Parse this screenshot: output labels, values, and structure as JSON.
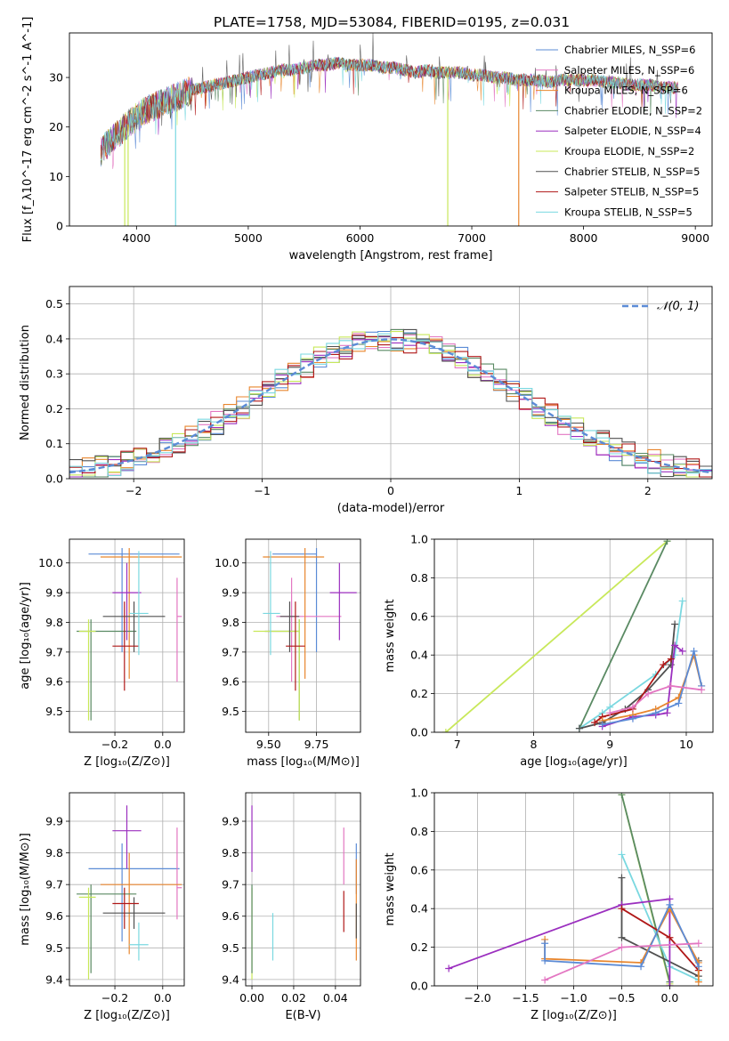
{
  "figure_title": "PLATE=1758, MJD=53084, FIBERID=0195, z=0.031",
  "series_colors": [
    "#5b8bd6",
    "#e377c2",
    "#e8862e",
    "#5a8a63",
    "#9b2fbf",
    "#c8e85a",
    "#505050",
    "#b01818",
    "#7ad8e0"
  ],
  "chart_data": [
    {
      "id": "spectrum",
      "type": "line",
      "xlabel": "wavelength [Angstrom, rest frame]",
      "ylabel": "Flux [f_λ10^-17 erg cm^-2 s^-1 A^-1]",
      "xlim": [
        3400,
        9150
      ],
      "ylim": [
        0,
        39
      ],
      "xticks": [
        4000,
        5000,
        6000,
        7000,
        8000,
        9000
      ],
      "yticks": [
        0,
        10,
        20,
        30
      ],
      "grid": false,
      "legend_position": "top-right",
      "legend": [
        "Chabrier MILES, N_SSP=6",
        "Salpeter MILES, N_SSP=6",
        "Kroupa MILES, N_SSP=6",
        "Chabrier ELODIE, N_SSP=2",
        "Salpeter ELODIE, N_SSP=4",
        "Kroupa ELODIE, N_SSP=2",
        "Chabrier STELIB, N_SSP=5",
        "Salpeter STELIB, N_SSP=5",
        "Kroupa STELIB, N_SSP=5"
      ],
      "legend_colors": [
        "#5b8bd6",
        "#e377c2",
        "#e8862e",
        "#5a8a63",
        "#9b2fbf",
        "#c8e85a",
        "#505050",
        "#b01818",
        "#7ad8e0"
      ],
      "continuum_x": [
        3680,
        3800,
        3900,
        4000,
        4100,
        4200,
        4300,
        4400,
        4500,
        4600,
        4700,
        4800,
        4900,
        5000,
        5100,
        5200,
        5300,
        5400,
        5500,
        5600,
        5700,
        5800,
        5900,
        6000,
        6100,
        6200,
        6300,
        6400,
        6500,
        6600,
        6700,
        6800,
        6900,
        7000,
        7100,
        7200,
        7300,
        7400,
        7500,
        7600,
        7700,
        7800,
        7900,
        8000,
        8100,
        8200,
        8300,
        8400,
        8500,
        8600,
        8700,
        8800,
        8850
      ],
      "continuum_y": [
        15,
        18,
        20,
        22,
        23.5,
        24.5,
        25.5,
        26.5,
        27.5,
        28,
        28.5,
        29,
        29.5,
        30,
        30.5,
        31,
        31.5,
        31.5,
        32,
        32.5,
        32.5,
        33,
        32.5,
        32.5,
        32.5,
        32,
        32,
        31.5,
        31,
        31.5,
        31,
        31,
        31,
        30.5,
        30.5,
        30,
        30,
        29.5,
        29.5,
        29.5,
        29,
        29.5,
        29.5,
        29.5,
        29.5,
        29,
        29,
        28.5,
        28.5,
        28.5,
        28,
        28,
        28
      ],
      "dropouts": [
        {
          "x": 3895,
          "to": 0,
          "color": "#c8e85a"
        },
        {
          "x": 3925,
          "to": 0,
          "color": "#c8e85a"
        },
        {
          "x": 4350,
          "to": 0,
          "color": "#7ad8e0"
        },
        {
          "x": 6785,
          "to": 0,
          "color": "#c8e85a"
        },
        {
          "x": 7420,
          "to": 0,
          "color": "#e8862e"
        }
      ]
    },
    {
      "id": "residuals",
      "type": "line",
      "xlabel": "(data-model)/error",
      "ylabel": "Normed distribution",
      "xlim": [
        -2.5,
        2.5
      ],
      "ylim": [
        0,
        0.55
      ],
      "xticks": [
        -2,
        -1,
        0,
        1,
        2
      ],
      "yticks": [
        0.0,
        0.1,
        0.2,
        0.3,
        0.4,
        0.5
      ],
      "grid": true,
      "legend_position": "top-right",
      "gaussian_label": "𝒩(0, 1)",
      "gaussian_color": "#5b8bd6",
      "bins": [
        -2.5,
        -2.4,
        -2.3,
        -2.2,
        -2.1,
        -2.0,
        -1.9,
        -1.8,
        -1.7,
        -1.6,
        -1.5,
        -1.4,
        -1.3,
        -1.2,
        -1.1,
        -1.0,
        -0.9,
        -0.8,
        -0.7,
        -0.6,
        -0.5,
        -0.4,
        -0.3,
        -0.2,
        -0.1,
        0.0,
        0.1,
        0.2,
        0.3,
        0.4,
        0.5,
        0.6,
        0.7,
        0.8,
        0.9,
        1.0,
        1.1,
        1.2,
        1.3,
        1.4,
        1.5,
        1.6,
        1.7,
        1.8,
        1.9,
        2.0,
        2.1,
        2.2,
        2.3,
        2.4,
        2.5
      ]
    },
    {
      "id": "age-vs-Z",
      "type": "scatter",
      "xlabel": "Z [log₁₀(Z/Z⊙)]",
      "ylabel": "age  [log₁₀(age/yr)]",
      "xlim": [
        -0.39,
        0.09
      ],
      "ylim": [
        9.43,
        10.08
      ],
      "xticks": [
        -0.2,
        0.0
      ],
      "xtick_labels": [
        "−0.2",
        "0.0"
      ],
      "yticks": [
        9.5,
        9.6,
        9.7,
        9.8,
        9.9,
        10.0
      ],
      "grid": true,
      "points": [
        {
          "x": -0.17,
          "xerr": [
            0.14,
            0.24
          ],
          "y": 10.03,
          "yerr": [
            0.33,
            0.02
          ],
          "color": "#5b8bd6"
        },
        {
          "x": 0.06,
          "xerr": [
            0.0,
            0.02
          ],
          "y": 9.82,
          "yerr": [
            0.22,
            0.13
          ],
          "color": "#e377c2"
        },
        {
          "x": -0.14,
          "xerr": [
            0.12,
            0.22
          ],
          "y": 10.02,
          "yerr": [
            0.41,
            0.03
          ],
          "color": "#e8862e"
        },
        {
          "x": -0.3,
          "xerr": [
            0.06,
            0.19
          ],
          "y": 9.77,
          "yerr": [
            0.3,
            0.04
          ],
          "color": "#5a8a63"
        },
        {
          "x": -0.15,
          "xerr": [
            0.06,
            0.06
          ],
          "y": 9.9,
          "yerr": [
            0.16,
            0.1
          ],
          "color": "#9b2fbf"
        },
        {
          "x": -0.31,
          "xerr": [
            0.04,
            0.03
          ],
          "y": 9.77,
          "yerr": [
            0.3,
            0.04
          ],
          "color": "#c8e85a"
        },
        {
          "x": -0.12,
          "xerr": [
            0.13,
            0.13
          ],
          "y": 9.82,
          "yerr": [
            0.12,
            0.05
          ],
          "color": "#505050"
        },
        {
          "x": -0.16,
          "xerr": [
            0.05,
            0.06
          ],
          "y": 9.72,
          "yerr": [
            0.15,
            0.15
          ],
          "color": "#b01818"
        },
        {
          "x": -0.1,
          "xerr": [
            0.04,
            0.04
          ],
          "y": 9.83,
          "yerr": [
            0.14,
            0.21
          ],
          "color": "#7ad8e0"
        }
      ]
    },
    {
      "id": "age-vs-mass",
      "type": "scatter",
      "xlabel": "mass [log₁₀(M/M⊙)]",
      "ylabel": "",
      "xlim": [
        9.38,
        9.98
      ],
      "ylim": [
        9.43,
        10.08
      ],
      "xticks": [
        9.5,
        9.75
      ],
      "xtick_labels": [
        "9.50",
        "9.75"
      ],
      "yticks": [
        9.5,
        9.6,
        9.7,
        9.8,
        9.9,
        10.0
      ],
      "grid": true,
      "points": [
        {
          "x": 9.75,
          "xerr": [
            0.23,
            0.0
          ],
          "y": 10.03,
          "yerr": [
            0.33,
            0.02
          ],
          "color": "#5b8bd6"
        },
        {
          "x": 9.62,
          "xerr": [
            0.08,
            0.26
          ],
          "y": 9.82,
          "yerr": [
            0.22,
            0.13
          ],
          "color": "#e377c2"
        },
        {
          "x": 9.69,
          "xerr": [
            0.22,
            0.1
          ],
          "y": 10.02,
          "yerr": [
            0.41,
            0.03
          ],
          "color": "#e8862e"
        },
        {
          "x": 9.66,
          "xerr": [
            0.18,
            0.0
          ],
          "y": 9.77,
          "yerr": [
            0.3,
            0.04
          ],
          "color": "#5a8a63"
        },
        {
          "x": 9.87,
          "xerr": [
            0.05,
            0.09
          ],
          "y": 9.9,
          "yerr": [
            0.16,
            0.1
          ],
          "color": "#9b2fbf"
        },
        {
          "x": 9.66,
          "xerr": [
            0.24,
            0.0
          ],
          "y": 9.77,
          "yerr": [
            0.3,
            0.04
          ],
          "color": "#c8e85a"
        },
        {
          "x": 9.61,
          "xerr": [
            0.05,
            0.05
          ],
          "y": 9.82,
          "yerr": [
            0.12,
            0.05
          ],
          "color": "#505050"
        },
        {
          "x": 9.64,
          "xerr": [
            0.05,
            0.05
          ],
          "y": 9.72,
          "yerr": [
            0.15,
            0.15
          ],
          "color": "#b01818"
        },
        {
          "x": 9.51,
          "xerr": [
            0.04,
            0.05
          ],
          "y": 9.83,
          "yerr": [
            0.14,
            0.21
          ],
          "color": "#7ad8e0"
        }
      ]
    },
    {
      "id": "weight-vs-age",
      "type": "line",
      "xlabel": "age  [log₁₀(age/yr)]",
      "ylabel": "mass weight",
      "xlim": [
        6.7,
        10.35
      ],
      "ylim": [
        0,
        1.0
      ],
      "xticks": [
        7,
        8,
        9,
        10
      ],
      "yticks": [
        0.0,
        0.2,
        0.4,
        0.6,
        0.8,
        1.0
      ],
      "grid": true,
      "series": [
        {
          "color": "#c8e85a",
          "x": [
            6.85,
            9.75
          ],
          "y": [
            0.0,
            0.99
          ]
        },
        {
          "color": "#5a8a63",
          "x": [
            8.6,
            9.75
          ],
          "y": [
            0.02,
            0.99
          ]
        },
        {
          "color": "#7ad8e0",
          "x": [
            8.6,
            8.9,
            9.0,
            9.6,
            9.85,
            9.95
          ],
          "y": [
            0.02,
            0.1,
            0.13,
            0.3,
            0.4,
            0.68
          ]
        },
        {
          "color": "#505050",
          "x": [
            8.6,
            8.9,
            9.2,
            9.5,
            9.8,
            9.85
          ],
          "y": [
            0.02,
            0.05,
            0.12,
            0.22,
            0.35,
            0.56
          ]
        },
        {
          "color": "#9b2fbf",
          "x": [
            8.9,
            9.3,
            9.6,
            9.75,
            9.85,
            9.95
          ],
          "y": [
            0.03,
            0.08,
            0.09,
            0.1,
            0.45,
            0.42
          ]
        },
        {
          "color": "#b01818",
          "x": [
            8.8,
            8.9,
            9.3,
            9.7,
            9.8
          ],
          "y": [
            0.05,
            0.08,
            0.12,
            0.35,
            0.38
          ]
        },
        {
          "color": "#e8862e",
          "x": [
            8.9,
            9.3,
            9.6,
            9.9,
            10.1,
            10.2
          ],
          "y": [
            0.06,
            0.09,
            0.12,
            0.18,
            0.4,
            0.24
          ]
        },
        {
          "color": "#5b8bd6",
          "x": [
            8.9,
            9.3,
            9.6,
            9.9,
            10.1,
            10.2
          ],
          "y": [
            0.04,
            0.07,
            0.1,
            0.15,
            0.42,
            0.24
          ]
        },
        {
          "color": "#e377c2",
          "x": [
            9.0,
            9.3,
            9.5,
            9.8,
            10.2
          ],
          "y": [
            0.1,
            0.13,
            0.2,
            0.24,
            0.22
          ]
        }
      ]
    },
    {
      "id": "mass-vs-Z",
      "type": "scatter",
      "xlabel": "Z [log₁₀(Z/Z⊙)]",
      "ylabel": "mass [log₁₀(M/M⊙)]",
      "xlim": [
        -0.39,
        0.09
      ],
      "ylim": [
        9.38,
        9.99
      ],
      "xticks": [
        -0.2,
        0.0
      ],
      "xtick_labels": [
        "−0.2",
        "0.0"
      ],
      "yticks": [
        9.4,
        9.5,
        9.6,
        9.7,
        9.8,
        9.9
      ],
      "grid": true,
      "points": [
        {
          "x": -0.17,
          "xerr": [
            0.14,
            0.24
          ],
          "y": 9.75,
          "yerr": [
            0.23,
            0.08
          ],
          "color": "#5b8bd6"
        },
        {
          "x": 0.06,
          "xerr": [
            0.0,
            0.02
          ],
          "y": 9.69,
          "yerr": [
            0.1,
            0.19
          ],
          "color": "#e377c2"
        },
        {
          "x": -0.14,
          "xerr": [
            0.12,
            0.22
          ],
          "y": 9.7,
          "yerr": [
            0.22,
            0.1
          ],
          "color": "#e8862e"
        },
        {
          "x": -0.3,
          "xerr": [
            0.06,
            0.19
          ],
          "y": 9.67,
          "yerr": [
            0.25,
            0.03
          ],
          "color": "#5a8a63"
        },
        {
          "x": -0.15,
          "xerr": [
            0.06,
            0.06
          ],
          "y": 9.87,
          "yerr": [
            0.12,
            0.08
          ],
          "color": "#9b2fbf"
        },
        {
          "x": -0.31,
          "xerr": [
            0.04,
            0.03
          ],
          "y": 9.66,
          "yerr": [
            0.26,
            0.03
          ],
          "color": "#c8e85a"
        },
        {
          "x": -0.12,
          "xerr": [
            0.13,
            0.13
          ],
          "y": 9.61,
          "yerr": [
            0.05,
            0.05
          ],
          "color": "#505050"
        },
        {
          "x": -0.16,
          "xerr": [
            0.05,
            0.06
          ],
          "y": 9.64,
          "yerr": [
            0.08,
            0.05
          ],
          "color": "#b01818"
        },
        {
          "x": -0.1,
          "xerr": [
            0.04,
            0.04
          ],
          "y": 9.51,
          "yerr": [
            0.05,
            0.07
          ],
          "color": "#7ad8e0"
        }
      ]
    },
    {
      "id": "mass-vs-EBV",
      "type": "scatter",
      "xlabel": "E(B-V)",
      "ylabel": "",
      "xlim": [
        -0.003,
        0.052
      ],
      "ylim": [
        9.38,
        9.99
      ],
      "xticks": [
        0.0,
        0.02,
        0.04
      ],
      "xtick_labels": [
        "0.00",
        "0.02",
        "0.04"
      ],
      "yticks": [
        9.4,
        9.5,
        9.6,
        9.7,
        9.8,
        9.9
      ],
      "grid": true,
      "points": [
        {
          "x": 0.0,
          "y": 9.86,
          "yerr": [
            0.12,
            0.09
          ],
          "color": "#9b2fbf"
        },
        {
          "x": 0.0,
          "y": 9.66,
          "yerr": [
            0.26,
            0.03
          ],
          "color": "#c8e85a"
        },
        {
          "x": 0.0,
          "y": 9.67,
          "yerr": [
            0.25,
            0.03
          ],
          "color": "#5a8a63"
        },
        {
          "x": 0.01,
          "y": 9.53,
          "yerr": [
            0.07,
            0.08
          ],
          "color": "#7ad8e0"
        },
        {
          "x": 0.044,
          "y": 9.79,
          "yerr": [
            0.09,
            0.09
          ],
          "color": "#e377c2"
        },
        {
          "x": 0.044,
          "y": 9.61,
          "yerr": [
            0.06,
            0.07
          ],
          "color": "#b01818"
        },
        {
          "x": 0.05,
          "y": 9.75,
          "yerr": [
            0.08,
            0.08
          ],
          "color": "#5b8bd6"
        },
        {
          "x": 0.05,
          "y": 9.62,
          "yerr": [
            0.16,
            0.16
          ],
          "color": "#e8862e"
        },
        {
          "x": 0.05,
          "y": 9.6,
          "yerr": [
            0.07,
            0.04
          ],
          "color": "#505050"
        }
      ]
    },
    {
      "id": "weight-vs-Z",
      "type": "line",
      "xlabel": "Z [log₁₀(Z/Z⊙)]",
      "ylabel": "mass weight",
      "xlim": [
        -2.45,
        0.45
      ],
      "ylim": [
        0,
        1.0
      ],
      "xticks": [
        -2.0,
        -1.5,
        -1.0,
        -0.5,
        0.0
      ],
      "xtick_labels": [
        "−2.0",
        "−1.5",
        "−1.0",
        "−0.5",
        "0.0"
      ],
      "yticks": [
        0.0,
        0.2,
        0.4,
        0.6,
        0.8,
        1.0
      ],
      "grid": true,
      "series": [
        {
          "color": "#c8e85a",
          "x": [
            -0.5,
            0.0
          ],
          "y": [
            0.99,
            0.01
          ]
        },
        {
          "color": "#5a8a63",
          "x": [
            -0.5,
            0.0
          ],
          "y": [
            0.99,
            0.02
          ]
        },
        {
          "color": "#7ad8e0",
          "x": [
            -0.5,
            0.0,
            0.3
          ],
          "y": [
            0.68,
            0.1,
            0.03
          ]
        },
        {
          "color": "#505050",
          "x": [
            -0.5,
            -0.5,
            0.3,
            0.3
          ],
          "y": [
            0.56,
            0.25,
            0.05,
            0.13
          ]
        },
        {
          "color": "#9b2fbf",
          "x": [
            -2.3,
            -0.5,
            0.0,
            0.0
          ],
          "y": [
            0.09,
            0.42,
            0.45,
            0.0
          ]
        },
        {
          "color": "#b01818",
          "x": [
            -0.5,
            0.0,
            0.3
          ],
          "y": [
            0.4,
            0.25,
            0.08
          ]
        },
        {
          "color": "#e8862e",
          "x": [
            -1.3,
            -1.3,
            -0.3,
            0.0,
            0.3,
            0.3
          ],
          "y": [
            0.24,
            0.14,
            0.12,
            0.4,
            0.12,
            0.02
          ]
        },
        {
          "color": "#5b8bd6",
          "x": [
            -1.3,
            -1.3,
            -0.3,
            0.0,
            0.3
          ],
          "y": [
            0.22,
            0.13,
            0.1,
            0.42,
            0.1
          ]
        },
        {
          "color": "#e377c2",
          "x": [
            -1.3,
            -0.5,
            0.3
          ],
          "y": [
            0.03,
            0.2,
            0.22
          ]
        }
      ]
    }
  ]
}
